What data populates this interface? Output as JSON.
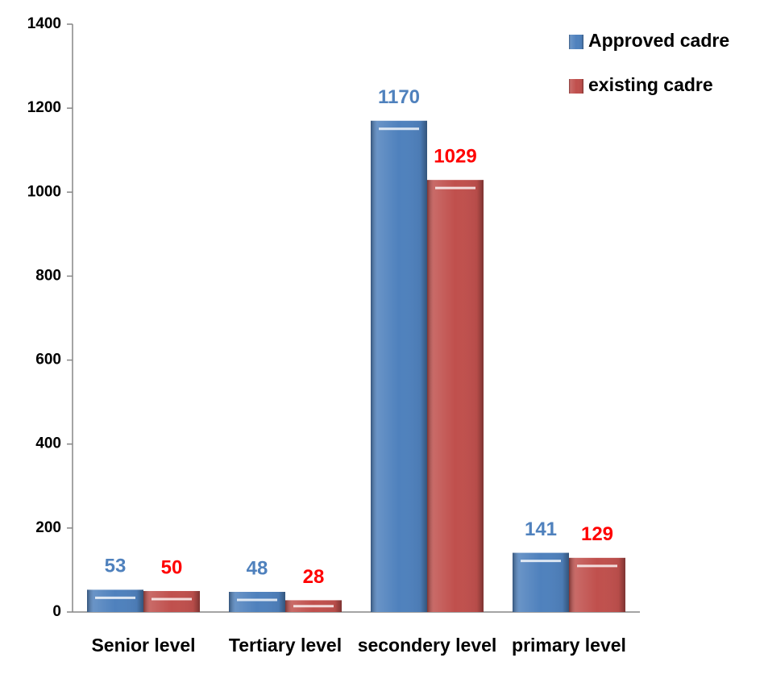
{
  "chart_data": {
    "type": "bar",
    "categories": [
      "Senior level",
      "Tertiary level",
      "secondery level",
      "primary level"
    ],
    "series": [
      {
        "name": "Approved cadre",
        "color": "#4f81bd",
        "label_color": "#4f81bd",
        "values": [
          53,
          48,
          1170,
          141
        ]
      },
      {
        "name": "existing cadre",
        "color": "#c0504d",
        "label_color": "#ff0000",
        "values": [
          50,
          28,
          1029,
          129
        ]
      }
    ],
    "ylim": [
      0,
      1400
    ],
    "yticks": [
      0,
      200,
      400,
      600,
      800,
      1000,
      1200,
      1400
    ],
    "legend": "top-right"
  }
}
